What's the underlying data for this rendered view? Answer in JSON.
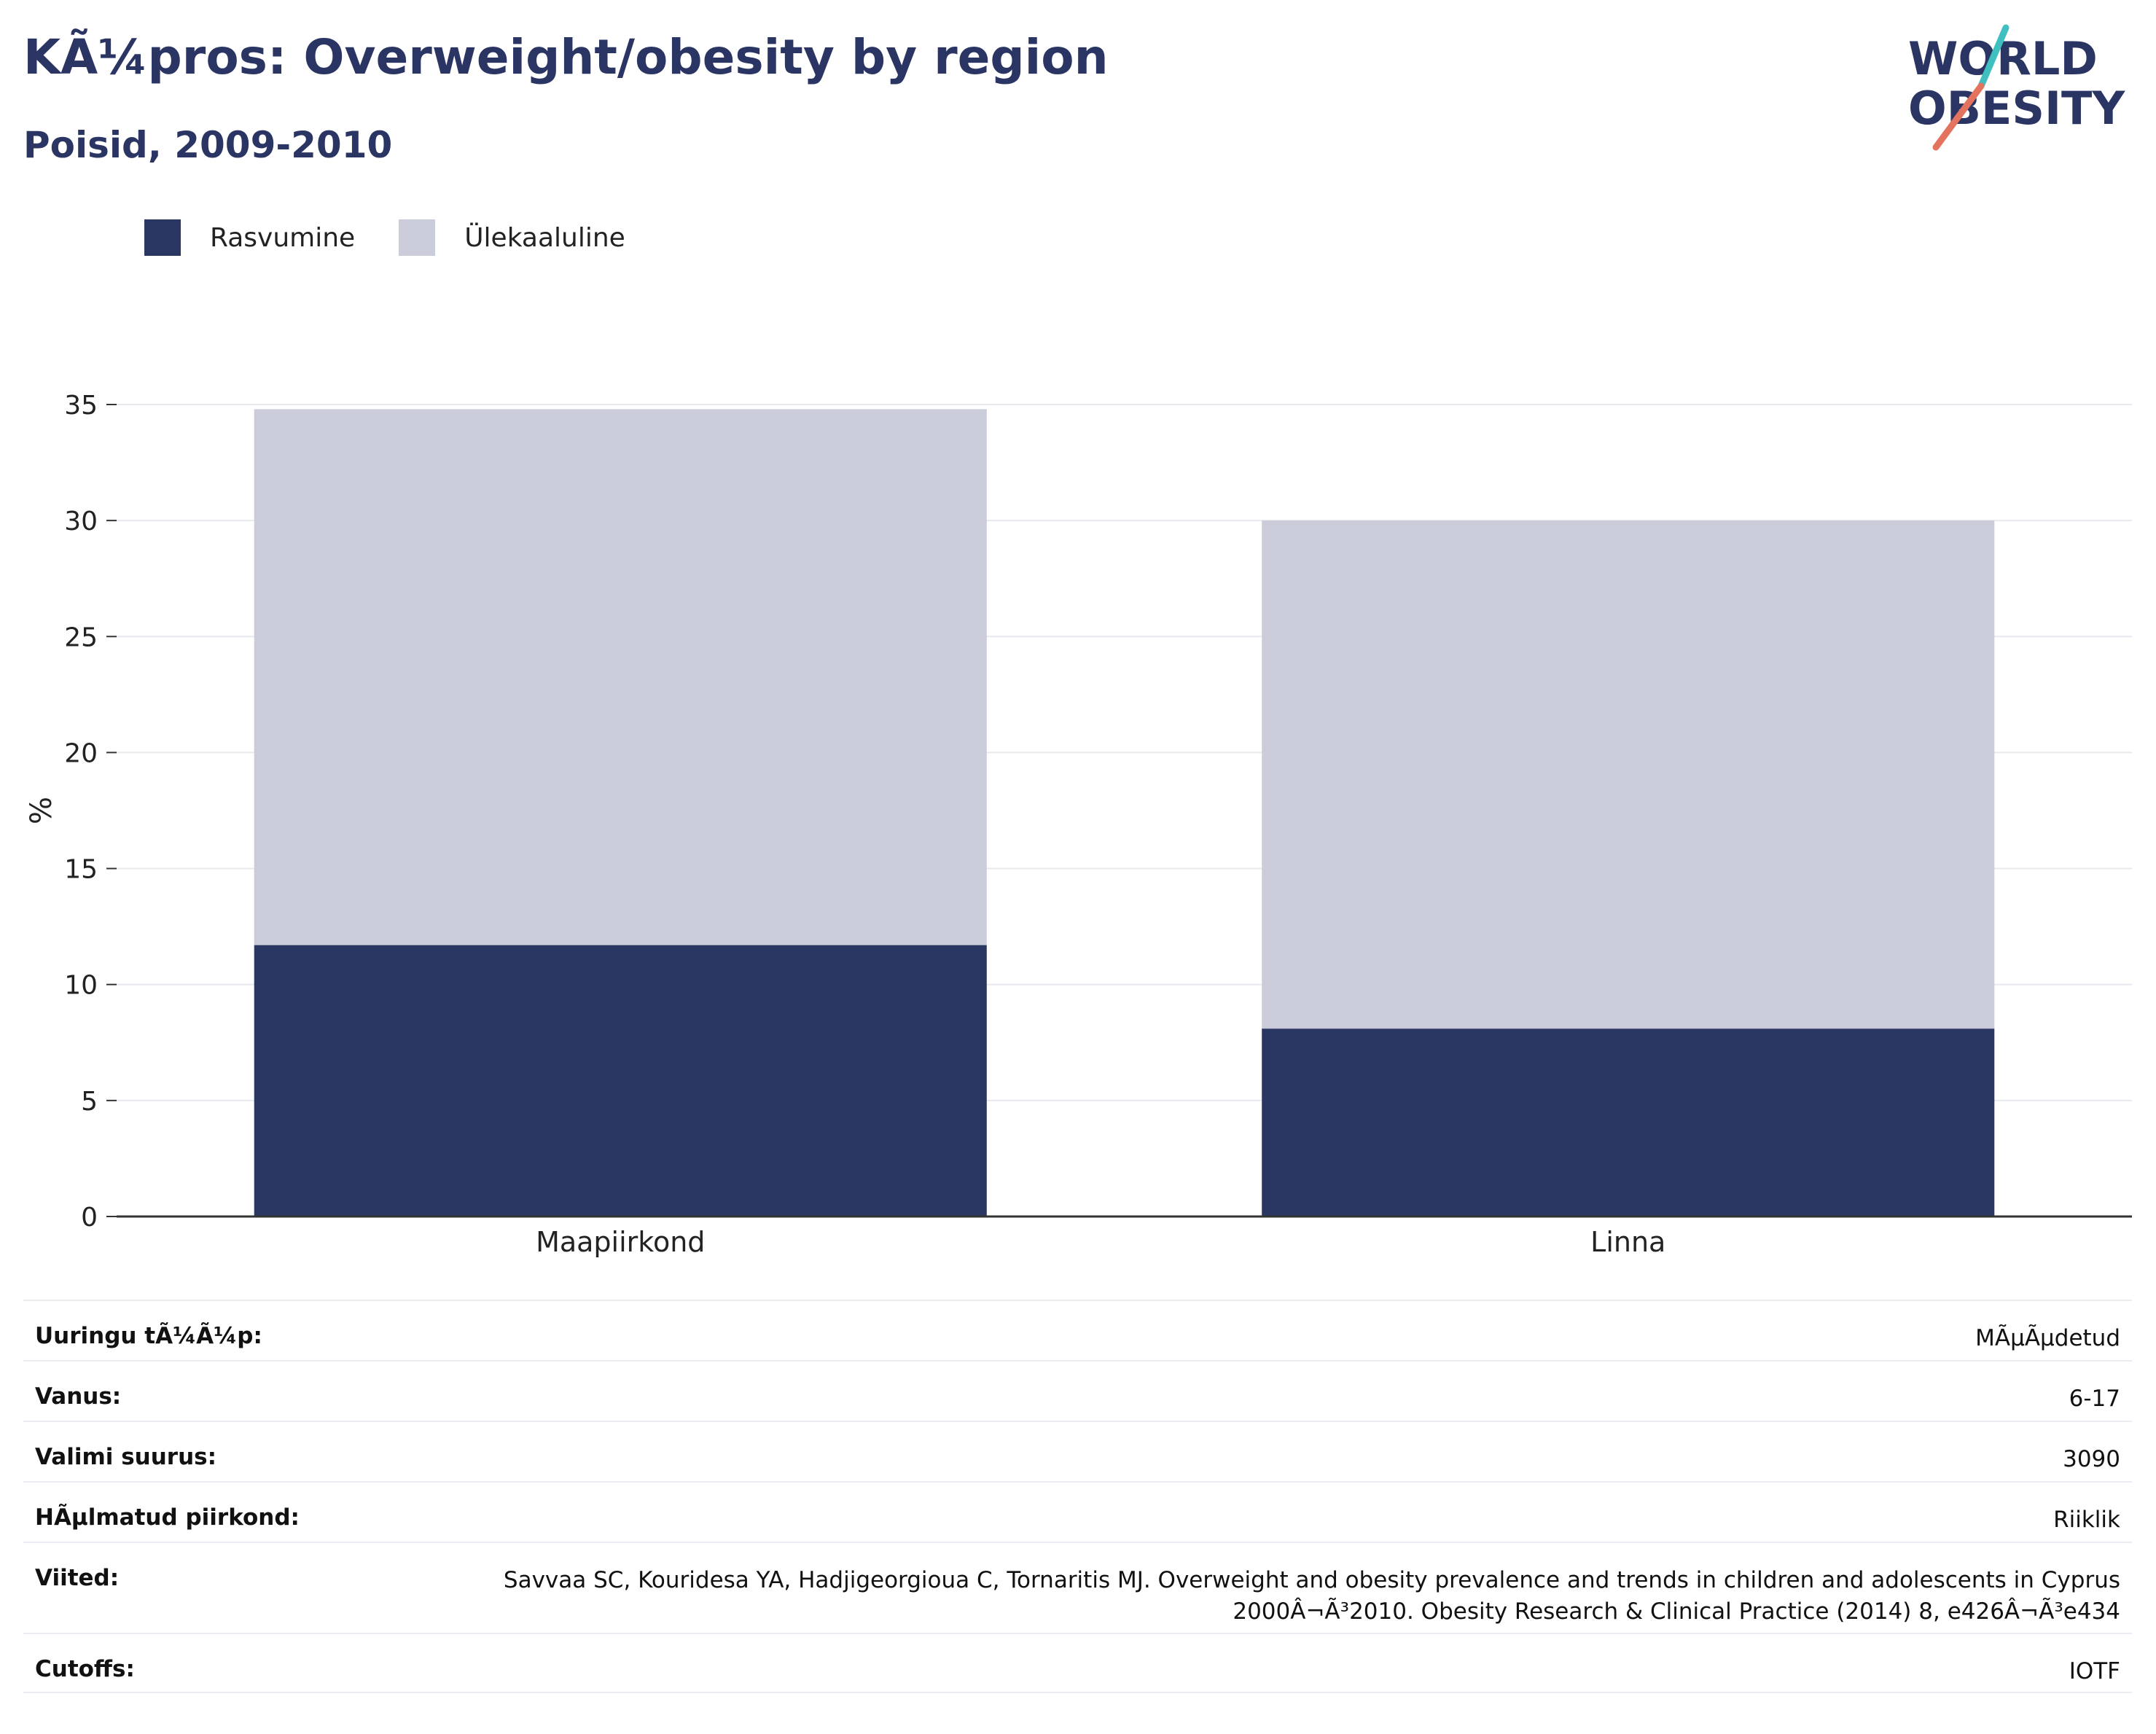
{
  "header": {
    "title": "KÃ¼pros: Overweight/obesity by region",
    "subtitle": "Poisid, 2009-2010"
  },
  "logo": {
    "line1": "WORLD",
    "line2": "OBESITY",
    "text_color": "#2b3563",
    "accent_teal": "#3fbfbf",
    "accent_coral": "#e3735e"
  },
  "legend": {
    "items": [
      {
        "label": "Rasvumine",
        "color": "#2b3763"
      },
      {
        "label": "Ülekaaluline",
        "color": "#cacdd9"
      }
    ]
  },
  "chart_data": {
    "type": "bar",
    "stacked": true,
    "categories": [
      "Maapiirkond",
      "Linna"
    ],
    "series": [
      {
        "name": "Rasvumine",
        "values": [
          11.7,
          8.1
        ],
        "color": "#2b3763"
      },
      {
        "name": "Ülekaaluline",
        "values": [
          23.1,
          21.9
        ],
        "color": "#cacdd9"
      }
    ],
    "ylabel": "%",
    "xlabel": "",
    "ylim": [
      0,
      35
    ],
    "yticks": [
      0,
      5,
      10,
      15,
      20,
      25,
      30,
      35
    ],
    "grid": true,
    "legend_position": "top-left"
  },
  "info_table": {
    "rows": [
      {
        "label": "Uuringu tÃ¼Ã¼p:",
        "value": "MÃµÃµdetud"
      },
      {
        "label": "Vanus:",
        "value": "6-17"
      },
      {
        "label": "Valimi suurus:",
        "value": "3090"
      },
      {
        "label": "HÃµlmatud piirkond:",
        "value": "Riiklik"
      },
      {
        "label": "Viited:",
        "value": "Savvaa SC, Kouridesa YA, Hadjigeorgioua C, Tornaritis MJ. Overweight and obesity prevalence and trends in children and adolescents in Cyprus 2000Â¬Ã³2010. Obesity Research & Clinical Practice (2014) 8, e426Â¬Ã³e434"
      },
      {
        "label": "Cutoffs:",
        "value": "IOTF"
      }
    ]
  }
}
